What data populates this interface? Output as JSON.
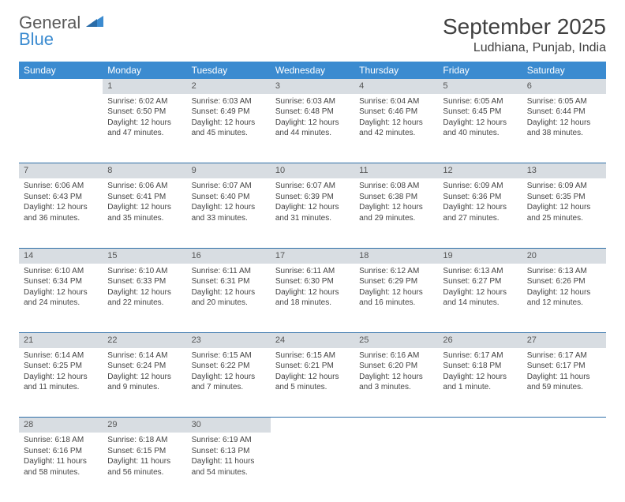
{
  "logo": {
    "line1": "General",
    "line2": "Blue",
    "color_gray": "#5a5a5a",
    "color_blue": "#3b8bd0"
  },
  "title": "September 2025",
  "location": "Ludhiana, Punjab, India",
  "header_bg": "#3b8bd0",
  "header_fg": "#ffffff",
  "daynum_bg": "#d8dde2",
  "border_color": "#2f6fa8",
  "day_names": [
    "Sunday",
    "Monday",
    "Tuesday",
    "Wednesday",
    "Thursday",
    "Friday",
    "Saturday"
  ],
  "weeks": [
    [
      null,
      {
        "n": "1",
        "sr": "6:02 AM",
        "ss": "6:50 PM",
        "dl": "12 hours and 47 minutes."
      },
      {
        "n": "2",
        "sr": "6:03 AM",
        "ss": "6:49 PM",
        "dl": "12 hours and 45 minutes."
      },
      {
        "n": "3",
        "sr": "6:03 AM",
        "ss": "6:48 PM",
        "dl": "12 hours and 44 minutes."
      },
      {
        "n": "4",
        "sr": "6:04 AM",
        "ss": "6:46 PM",
        "dl": "12 hours and 42 minutes."
      },
      {
        "n": "5",
        "sr": "6:05 AM",
        "ss": "6:45 PM",
        "dl": "12 hours and 40 minutes."
      },
      {
        "n": "6",
        "sr": "6:05 AM",
        "ss": "6:44 PM",
        "dl": "12 hours and 38 minutes."
      }
    ],
    [
      {
        "n": "7",
        "sr": "6:06 AM",
        "ss": "6:43 PM",
        "dl": "12 hours and 36 minutes."
      },
      {
        "n": "8",
        "sr": "6:06 AM",
        "ss": "6:41 PM",
        "dl": "12 hours and 35 minutes."
      },
      {
        "n": "9",
        "sr": "6:07 AM",
        "ss": "6:40 PM",
        "dl": "12 hours and 33 minutes."
      },
      {
        "n": "10",
        "sr": "6:07 AM",
        "ss": "6:39 PM",
        "dl": "12 hours and 31 minutes."
      },
      {
        "n": "11",
        "sr": "6:08 AM",
        "ss": "6:38 PM",
        "dl": "12 hours and 29 minutes."
      },
      {
        "n": "12",
        "sr": "6:09 AM",
        "ss": "6:36 PM",
        "dl": "12 hours and 27 minutes."
      },
      {
        "n": "13",
        "sr": "6:09 AM",
        "ss": "6:35 PM",
        "dl": "12 hours and 25 minutes."
      }
    ],
    [
      {
        "n": "14",
        "sr": "6:10 AM",
        "ss": "6:34 PM",
        "dl": "12 hours and 24 minutes."
      },
      {
        "n": "15",
        "sr": "6:10 AM",
        "ss": "6:33 PM",
        "dl": "12 hours and 22 minutes."
      },
      {
        "n": "16",
        "sr": "6:11 AM",
        "ss": "6:31 PM",
        "dl": "12 hours and 20 minutes."
      },
      {
        "n": "17",
        "sr": "6:11 AM",
        "ss": "6:30 PM",
        "dl": "12 hours and 18 minutes."
      },
      {
        "n": "18",
        "sr": "6:12 AM",
        "ss": "6:29 PM",
        "dl": "12 hours and 16 minutes."
      },
      {
        "n": "19",
        "sr": "6:13 AM",
        "ss": "6:27 PM",
        "dl": "12 hours and 14 minutes."
      },
      {
        "n": "20",
        "sr": "6:13 AM",
        "ss": "6:26 PM",
        "dl": "12 hours and 12 minutes."
      }
    ],
    [
      {
        "n": "21",
        "sr": "6:14 AM",
        "ss": "6:25 PM",
        "dl": "12 hours and 11 minutes."
      },
      {
        "n": "22",
        "sr": "6:14 AM",
        "ss": "6:24 PM",
        "dl": "12 hours and 9 minutes."
      },
      {
        "n": "23",
        "sr": "6:15 AM",
        "ss": "6:22 PM",
        "dl": "12 hours and 7 minutes."
      },
      {
        "n": "24",
        "sr": "6:15 AM",
        "ss": "6:21 PM",
        "dl": "12 hours and 5 minutes."
      },
      {
        "n": "25",
        "sr": "6:16 AM",
        "ss": "6:20 PM",
        "dl": "12 hours and 3 minutes."
      },
      {
        "n": "26",
        "sr": "6:17 AM",
        "ss": "6:18 PM",
        "dl": "12 hours and 1 minute."
      },
      {
        "n": "27",
        "sr": "6:17 AM",
        "ss": "6:17 PM",
        "dl": "11 hours and 59 minutes."
      }
    ],
    [
      {
        "n": "28",
        "sr": "6:18 AM",
        "ss": "6:16 PM",
        "dl": "11 hours and 58 minutes."
      },
      {
        "n": "29",
        "sr": "6:18 AM",
        "ss": "6:15 PM",
        "dl": "11 hours and 56 minutes."
      },
      {
        "n": "30",
        "sr": "6:19 AM",
        "ss": "6:13 PM",
        "dl": "11 hours and 54 minutes."
      },
      null,
      null,
      null,
      null
    ]
  ],
  "labels": {
    "sunrise": "Sunrise:",
    "sunset": "Sunset:",
    "daylight": "Daylight:"
  }
}
